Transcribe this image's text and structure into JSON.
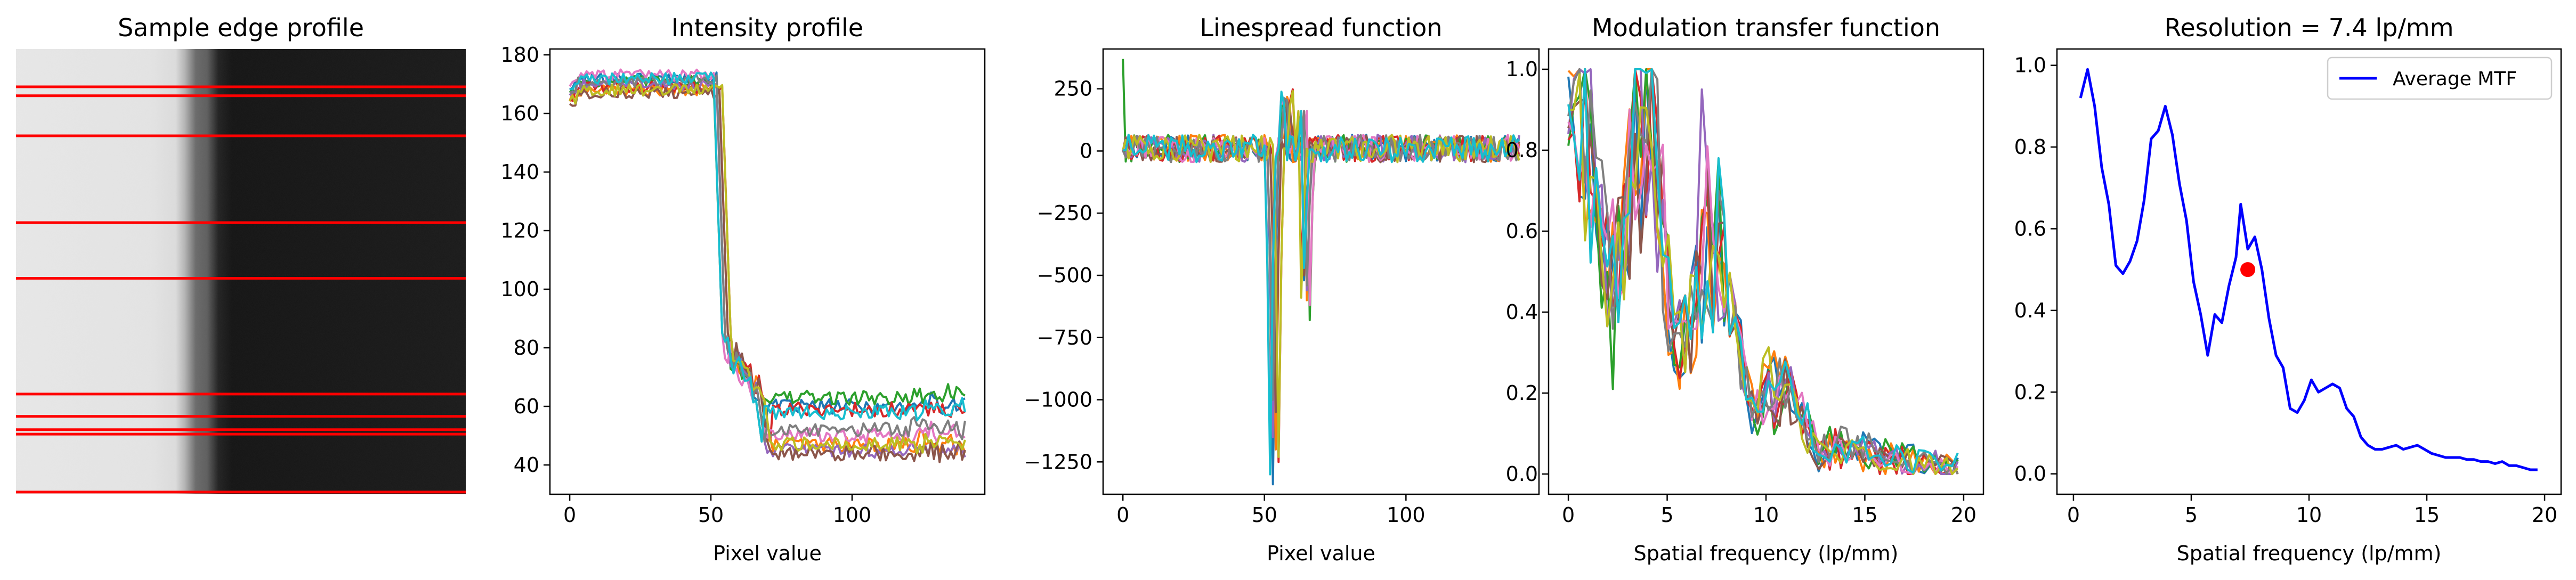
{
  "colors": {
    "tab10": [
      "#1f77b4",
      "#ff7f0e",
      "#2ca02c",
      "#d62728",
      "#9467bd",
      "#8c564b",
      "#e377c2",
      "#7f7f7f",
      "#bcbd22",
      "#17becf"
    ],
    "edge_lines": "#ff0000",
    "average_mtf": "#0000ff",
    "resolution_marker": "#ff0000"
  },
  "chart_data": [
    {
      "type": "image",
      "title": "Sample edge profile",
      "edge_row_fractions": [
        0.085,
        0.105,
        0.195,
        0.39,
        0.515,
        0.775,
        0.825,
        0.855,
        0.865,
        0.995
      ]
    },
    {
      "type": "line",
      "title": "Intensity profile",
      "xlabel": "Pixel value",
      "ylabel": "",
      "xlim": [
        -7,
        147
      ],
      "ylim": [
        30,
        182
      ],
      "xticks": [
        0,
        50,
        100
      ],
      "yticks": [
        40,
        60,
        80,
        100,
        120,
        140,
        160,
        180
      ],
      "x_max": 140,
      "series_count": 10,
      "plateau_levels_left": [
        172,
        168,
        171,
        169,
        170,
        167,
        173,
        171,
        168,
        172
      ],
      "plateau_levels_right": [
        60,
        47,
        63,
        59,
        45,
        44,
        50,
        52,
        47,
        58
      ],
      "edge_positions": [
        53,
        54,
        52,
        55,
        53,
        54,
        52,
        53,
        55,
        52
      ]
    },
    {
      "type": "line",
      "title": "Linespread function",
      "xlabel": "Pixel value",
      "ylabel": "",
      "xlim": [
        -7,
        147
      ],
      "ylim": [
        -1380,
        410
      ],
      "xticks": [
        0,
        50,
        100
      ],
      "yticks": [
        250,
        0,
        -250,
        -500,
        -750,
        -1000,
        -1250
      ],
      "x_max": 140,
      "series_count": 10,
      "first_peak_depths": [
        -1340,
        -1200,
        -1100,
        -1250,
        -1150,
        -1050,
        -1180,
        -1000,
        -1230,
        -1300
      ],
      "first_peak_positions": [
        53,
        54,
        52,
        55,
        53,
        54,
        52,
        53,
        55,
        52
      ],
      "second_peak_positions": [
        64,
        65,
        66,
        63,
        65,
        64,
        66,
        65,
        63,
        64
      ],
      "second_peak_depths": [
        -520,
        -600,
        -680,
        -480,
        -560,
        -500,
        -620,
        -540,
        -590,
        -470
      ]
    },
    {
      "type": "line",
      "title": "Modulation transfer function",
      "xlabel": "Spatial frequency (lp/mm)",
      "ylabel": "",
      "xlim": [
        -1,
        21
      ],
      "ylim": [
        -0.05,
        1.05
      ],
      "xticks": [
        0,
        5,
        10,
        15,
        20
      ],
      "yticks": [
        0.0,
        0.2,
        0.4,
        0.6,
        0.8,
        1.0
      ],
      "series_count": 10,
      "freq_max": 19.7
    },
    {
      "type": "line",
      "title": "Resolution = 7.4 lp/mm",
      "xlabel": "Spatial frequency (lp/mm)",
      "ylabel": "",
      "xlim": [
        -0.7,
        20.7
      ],
      "ylim": [
        -0.05,
        1.04
      ],
      "xticks": [
        0,
        5,
        10,
        15,
        20
      ],
      "yticks": [
        0.0,
        0.2,
        0.4,
        0.6,
        0.8,
        1.0
      ],
      "legend": {
        "position": "top-right",
        "entries": [
          "Average MTF"
        ]
      },
      "series": [
        {
          "name": "Average MTF",
          "x": [
            0.3,
            0.6,
            0.9,
            1.2,
            1.5,
            1.8,
            2.1,
            2.4,
            2.7,
            3.0,
            3.3,
            3.6,
            3.9,
            4.2,
            4.5,
            4.8,
            5.1,
            5.4,
            5.7,
            6.0,
            6.3,
            6.6,
            6.9,
            7.1,
            7.4,
            7.7,
            8.0,
            8.3,
            8.6,
            8.9,
            9.2,
            9.5,
            9.8,
            10.1,
            10.4,
            10.7,
            11.0,
            11.3,
            11.6,
            11.9,
            12.2,
            12.5,
            12.8,
            13.1,
            13.4,
            13.7,
            14.0,
            14.3,
            14.6,
            14.9,
            15.2,
            15.5,
            15.8,
            16.1,
            16.4,
            16.7,
            17.0,
            17.3,
            17.6,
            17.9,
            18.2,
            18.5,
            18.8,
            19.1,
            19.4,
            19.7
          ],
          "y": [
            0.92,
            0.99,
            0.9,
            0.75,
            0.66,
            0.51,
            0.49,
            0.52,
            0.57,
            0.67,
            0.82,
            0.84,
            0.9,
            0.83,
            0.71,
            0.62,
            0.47,
            0.39,
            0.29,
            0.39,
            0.37,
            0.46,
            0.53,
            0.66,
            0.55,
            0.58,
            0.5,
            0.38,
            0.29,
            0.26,
            0.16,
            0.15,
            0.18,
            0.23,
            0.2,
            0.21,
            0.22,
            0.21,
            0.16,
            0.14,
            0.09,
            0.07,
            0.06,
            0.06,
            0.065,
            0.07,
            0.06,
            0.065,
            0.07,
            0.06,
            0.05,
            0.045,
            0.04,
            0.04,
            0.04,
            0.035,
            0.035,
            0.03,
            0.03,
            0.025,
            0.03,
            0.02,
            0.02,
            0.015,
            0.01,
            0.01
          ]
        }
      ],
      "resolution_point": {
        "x": 7.4,
        "y": 0.5
      }
    }
  ]
}
